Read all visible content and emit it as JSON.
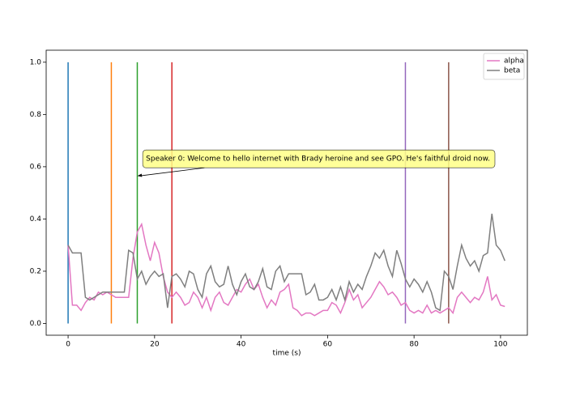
{
  "chart_data": {
    "type": "line",
    "xlabel": "time (s)",
    "xlim": [
      -5.07,
      106.2
    ],
    "ylim": [
      -0.045,
      1.046
    ],
    "xticks": [
      0,
      20,
      40,
      60,
      80,
      100
    ],
    "yticks": [
      {
        "value": 0,
        "label": "0.0"
      },
      {
        "value": 0.2,
        "label": "0.2"
      },
      {
        "value": 0.4,
        "label": "0.4"
      },
      {
        "value": 0.6,
        "label": "0.6"
      },
      {
        "value": 0.8,
        "label": "0.8"
      },
      {
        "value": 1.0,
        "label": "1.0"
      }
    ],
    "legend": "upper right",
    "x": [
      0,
      1,
      2,
      3,
      4,
      5,
      6,
      7,
      8,
      9,
      10,
      11,
      12,
      13,
      14,
      15,
      16,
      17,
      18,
      19,
      20,
      21,
      22,
      23,
      24,
      25,
      26,
      27,
      28,
      29,
      30,
      31,
      32,
      33,
      34,
      35,
      36,
      37,
      38,
      39,
      40,
      41,
      42,
      43,
      44,
      45,
      46,
      47,
      48,
      49,
      50,
      51,
      52,
      53,
      54,
      55,
      56,
      57,
      58,
      59,
      60,
      61,
      62,
      63,
      64,
      65,
      66,
      67,
      68,
      69,
      70,
      71,
      72,
      73,
      74,
      75,
      76,
      77,
      78,
      79,
      80,
      81,
      82,
      83,
      84,
      85,
      86,
      87,
      88,
      89,
      90,
      91,
      92,
      93,
      94,
      95,
      96,
      97,
      98,
      99,
      100,
      101
    ],
    "series": [
      {
        "name": "alpha",
        "color": "#e377c2",
        "values": [
          0.3,
          0.07,
          0.07,
          0.05,
          0.08,
          0.1,
          0.09,
          0.12,
          0.11,
          0.12,
          0.11,
          0.1,
          0.1,
          0.1,
          0.1,
          0.25,
          0.35,
          0.38,
          0.3,
          0.24,
          0.31,
          0.27,
          0.18,
          0.12,
          0.1,
          0.12,
          0.1,
          0.07,
          0.08,
          0.12,
          0.1,
          0.06,
          0.1,
          0.05,
          0.1,
          0.12,
          0.08,
          0.07,
          0.1,
          0.13,
          0.12,
          0.15,
          0.17,
          0.13,
          0.15,
          0.1,
          0.06,
          0.09,
          0.07,
          0.12,
          0.13,
          0.15,
          0.06,
          0.05,
          0.03,
          0.04,
          0.04,
          0.03,
          0.04,
          0.05,
          0.05,
          0.08,
          0.07,
          0.04,
          0.08,
          0.13,
          0.09,
          0.11,
          0.06,
          0.08,
          0.1,
          0.13,
          0.16,
          0.14,
          0.11,
          0.12,
          0.1,
          0.07,
          0.08,
          0.05,
          0.04,
          0.05,
          0.04,
          0.07,
          0.04,
          0.05,
          0.04,
          0.05,
          0.06,
          0.04,
          0.1,
          0.12,
          0.1,
          0.08,
          0.1,
          0.09,
          0.12,
          0.18,
          0.09,
          0.11,
          0.07,
          0.065
        ]
      },
      {
        "name": "beta",
        "color": "#7f7f7f",
        "values": [
          0.3,
          0.27,
          0.27,
          0.27,
          0.1,
          0.09,
          0.1,
          0.11,
          0.12,
          0.12,
          0.12,
          0.12,
          0.12,
          0.12,
          0.28,
          0.27,
          0.17,
          0.2,
          0.15,
          0.18,
          0.2,
          0.18,
          0.19,
          0.06,
          0.18,
          0.19,
          0.17,
          0.14,
          0.2,
          0.19,
          0.13,
          0.1,
          0.19,
          0.22,
          0.16,
          0.14,
          0.15,
          0.22,
          0.15,
          0.11,
          0.16,
          0.19,
          0.14,
          0.13,
          0.16,
          0.21,
          0.14,
          0.13,
          0.2,
          0.22,
          0.16,
          0.19,
          0.19,
          0.19,
          0.19,
          0.11,
          0.12,
          0.15,
          0.09,
          0.09,
          0.1,
          0.13,
          0.09,
          0.14,
          0.09,
          0.16,
          0.12,
          0.15,
          0.13,
          0.18,
          0.22,
          0.27,
          0.25,
          0.28,
          0.22,
          0.18,
          0.28,
          0.23,
          0.17,
          0.14,
          0.17,
          0.15,
          0.12,
          0.16,
          0.12,
          0.06,
          0.05,
          0.2,
          0.18,
          0.13,
          0.22,
          0.3,
          0.25,
          0.22,
          0.24,
          0.2,
          0.26,
          0.27,
          0.42,
          0.3,
          0.28,
          0.24
        ]
      }
    ],
    "vlines": {
      "x": [
        0,
        10,
        16,
        24,
        78,
        88
      ],
      "colors": [
        "#1f77b4",
        "#ff7f0e",
        "#2ca02c",
        "#d62728",
        "#9467bd",
        "#8c564b"
      ],
      "ymin": 0,
      "ymax": 1
    },
    "annotation": {
      "text": "Speaker 0: Welcome to hello internet with Brady heroine and see GPO. He's faithful droid now.",
      "xy": [
        16,
        0.565
      ],
      "xytext": [
        18,
        0.63
      ]
    }
  }
}
